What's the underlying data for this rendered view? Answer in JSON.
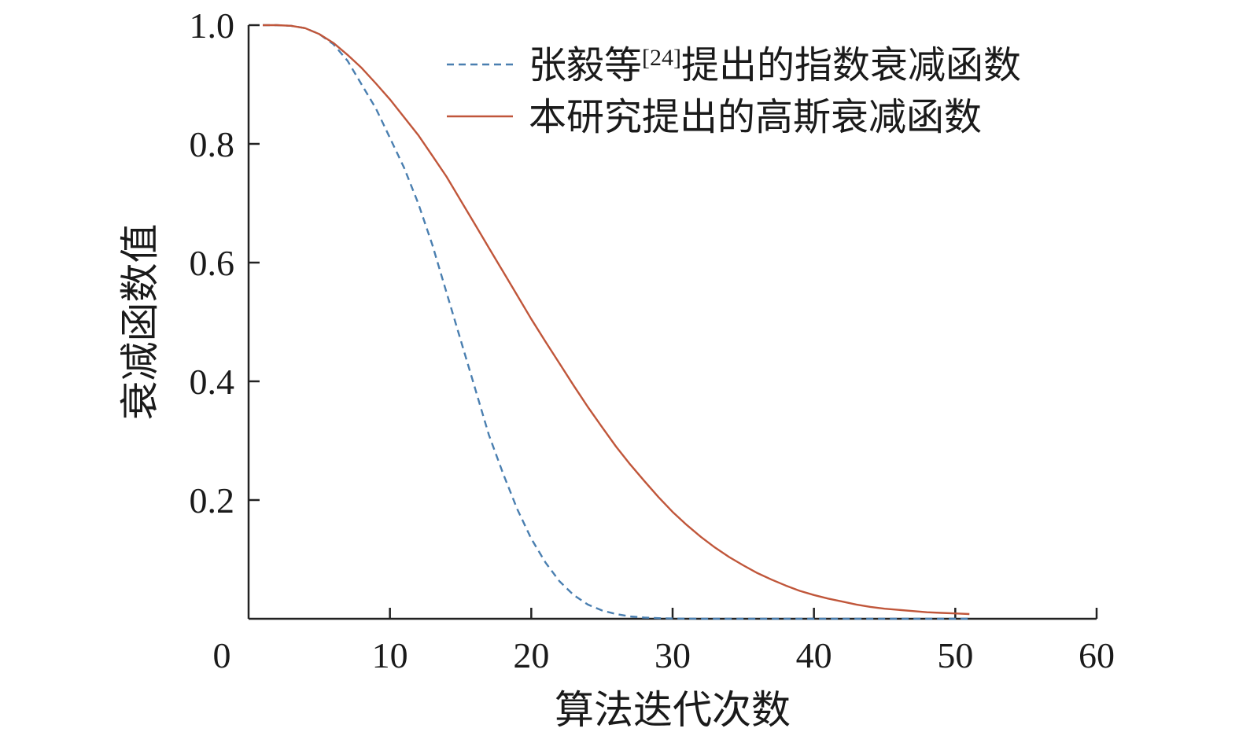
{
  "chart_data": {
    "type": "line",
    "title": "",
    "xlabel": "算法迭代次数",
    "ylabel": "衰减函数值",
    "xlim": [
      0,
      60
    ],
    "ylim": [
      0,
      1.0
    ],
    "x_ticks": [
      "0",
      "10",
      "20",
      "30",
      "40",
      "50",
      "60"
    ],
    "y_ticks": [
      "0.2",
      "0.4",
      "0.6",
      "0.8",
      "1.0"
    ],
    "grid": false,
    "legend_position": "top-right",
    "series": [
      {
        "name": "张毅等[24]提出的指数衰减函数",
        "legend_parts": {
          "before": "张毅等",
          "superscript": "[24]",
          "after": "提出的指数衰减函数"
        },
        "style": "dashed",
        "color": "#4a7fb0",
        "x": [
          1,
          2,
          3,
          4,
          5,
          6,
          7,
          8,
          9,
          10,
          11,
          12,
          13,
          14,
          15,
          16,
          17,
          18,
          19,
          20,
          21,
          22,
          23,
          24,
          25,
          26,
          27,
          28,
          29,
          30,
          32,
          35,
          40,
          45,
          51
        ],
        "y": [
          1.0,
          1.0,
          0.999,
          0.995,
          0.985,
          0.968,
          0.94,
          0.9,
          0.86,
          0.81,
          0.76,
          0.7,
          0.63,
          0.55,
          0.47,
          0.39,
          0.31,
          0.245,
          0.185,
          0.135,
          0.095,
          0.063,
          0.04,
          0.024,
          0.014,
          0.008,
          0.004,
          0.002,
          0.001,
          0.0005,
          0.0,
          0.0,
          0.0,
          0.0,
          0.0
        ]
      },
      {
        "name": "本研究提出的高斯衰减函数",
        "style": "solid",
        "color": "#c0563a",
        "x": [
          1,
          2,
          3,
          4,
          5,
          6,
          7,
          8,
          9,
          10,
          11,
          12,
          13,
          14,
          15,
          16,
          17,
          18,
          19,
          20,
          21,
          22,
          23,
          24,
          25,
          26,
          27,
          28,
          29,
          30,
          31,
          32,
          33,
          34,
          35,
          36,
          37,
          38,
          39,
          40,
          41,
          42,
          43,
          44,
          45,
          46,
          47,
          48,
          49,
          50,
          51
        ],
        "y": [
          1.0,
          1.0,
          0.999,
          0.995,
          0.985,
          0.97,
          0.95,
          0.928,
          0.902,
          0.875,
          0.845,
          0.815,
          0.78,
          0.745,
          0.705,
          0.665,
          0.625,
          0.585,
          0.545,
          0.505,
          0.467,
          0.43,
          0.393,
          0.357,
          0.323,
          0.29,
          0.26,
          0.232,
          0.205,
          0.18,
          0.158,
          0.138,
          0.12,
          0.104,
          0.09,
          0.077,
          0.066,
          0.056,
          0.047,
          0.04,
          0.034,
          0.029,
          0.024,
          0.02,
          0.017,
          0.015,
          0.013,
          0.011,
          0.01,
          0.009,
          0.008
        ]
      }
    ]
  }
}
